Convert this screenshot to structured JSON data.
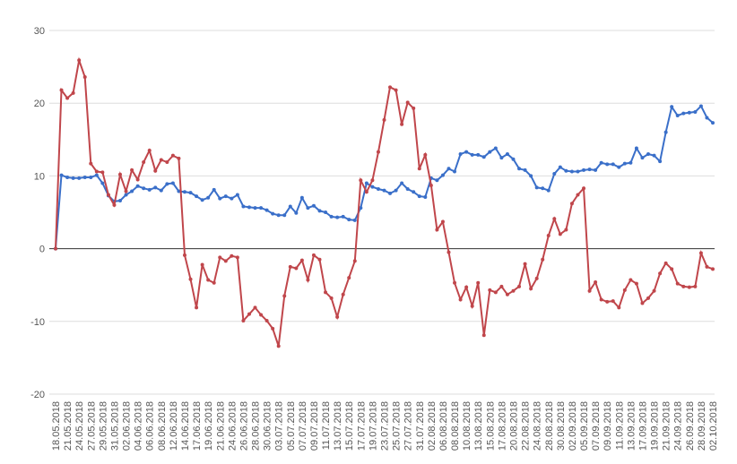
{
  "chart_data": {
    "type": "line",
    "categories": [
      "18.05.2018",
      null,
      "21.05.2018",
      null,
      "24.05.2018",
      null,
      "27.05.2018",
      null,
      "29.05.2018",
      null,
      "31.05.2018",
      null,
      "02.06.2018",
      null,
      "04.06.2018",
      null,
      "06.06.2018",
      null,
      "08.06.2018",
      null,
      "12.06.2018",
      null,
      "14.06.2018",
      null,
      "17.06.2018",
      null,
      "19.06.2018",
      null,
      "21.06.2018",
      null,
      "24.06.2018",
      null,
      "26.06.2018",
      null,
      "28.06.2018",
      null,
      "30.06.2018",
      null,
      "03.07.2018",
      null,
      "05.07.2018",
      null,
      "07.07.2018",
      null,
      "09.07.2018",
      null,
      "11.07.2018",
      null,
      "13.07.2018",
      null,
      "15.07.2018",
      null,
      "17.07.2018",
      null,
      "19.07.2018",
      null,
      "23.07.2018",
      null,
      "25.07.2018",
      null,
      "27.07.2018",
      null,
      "31.07.2018",
      null,
      "02.08.2018",
      null,
      "06.08.2018",
      null,
      "08.08.2018",
      null,
      "10.08.2018",
      null,
      "13.08.2018",
      null,
      "15.08.2018",
      null,
      "17.08.2018",
      null,
      "20.08.2018",
      null,
      "22.08.2018",
      null,
      "24.08.2018",
      null,
      "28.08.2018",
      null,
      "30.08.2018",
      null,
      "02.09.2018",
      null,
      "05.09.2018",
      null,
      "07.09.2018",
      null,
      "09.09.2018",
      null,
      "11.09.2018",
      null,
      "13.09.2018",
      null,
      "17.09.2018",
      null,
      "19.09.2018",
      null,
      "21.09.2018",
      null,
      "24.09.2018",
      null,
      "26.09.2018",
      null,
      "28.09.2018",
      null,
      "02.10.2018"
    ],
    "series": [
      {
        "color": "#3a6fc9",
        "values": [
          0,
          10.1,
          9.8,
          9.7,
          9.7,
          9.8,
          9.8,
          10.1,
          9.0,
          7.3,
          6.5,
          6.6,
          7.4,
          7.9,
          8.6,
          8.3,
          8.1,
          8.4,
          8.0,
          8.9,
          9.0,
          7.9,
          7.8,
          7.7,
          7.2,
          6.7,
          7.0,
          8.1,
          6.9,
          7.2,
          6.9,
          7.4,
          5.8,
          5.7,
          5.6,
          5.6,
          5.3,
          4.8,
          4.6,
          4.6,
          5.8,
          4.9,
          7.0,
          5.6,
          5.9,
          5.2,
          5.0,
          4.4,
          4.3,
          4.4,
          4.0,
          3.9,
          5.6,
          9.0,
          8.5,
          8.2,
          8.0,
          7.6,
          8.0,
          9.0,
          8.2,
          7.8,
          7.2,
          7.1,
          9.7,
          9.4,
          10.1,
          11.0,
          10.6,
          13.0,
          13.3,
          12.9,
          12.9,
          12.6,
          13.3,
          13.8,
          12.5,
          13.0,
          12.3,
          11.0,
          10.8,
          10.0,
          8.4,
          8.3,
          8.0,
          10.3,
          11.2,
          10.7,
          10.6,
          10.6,
          10.8,
          10.9,
          10.8,
          11.8,
          11.6,
          11.6,
          11.2,
          11.7,
          11.8,
          13.8,
          12.5,
          13.0,
          12.8,
          12.0,
          16.0,
          19.5,
          18.3,
          18.6,
          18.7,
          18.8,
          19.6,
          18.0,
          17.3
        ]
      },
      {
        "color": "#c0464b",
        "values": [
          0,
          21.8,
          20.7,
          21.4,
          25.9,
          23.6,
          11.7,
          10.6,
          10.5,
          7.4,
          6.0,
          10.2,
          7.9,
          10.8,
          9.5,
          11.9,
          13.5,
          10.7,
          12.2,
          11.9,
          12.8,
          12.4,
          -0.9,
          -4.2,
          -8.1,
          -2.2,
          -4.3,
          -4.7,
          -1.2,
          -1.7,
          -1.0,
          -1.2,
          -9.9,
          -9.0,
          -8.1,
          -9.1,
          -9.9,
          -11.0,
          -13.4,
          -6.5,
          -2.5,
          -2.7,
          -1.6,
          -4.3,
          -0.9,
          -1.5,
          -6.0,
          -6.8,
          -9.4,
          -6.3,
          -4.0,
          -1.7,
          9.4,
          7.8,
          9.4,
          13.3,
          17.7,
          22.2,
          21.8,
          17.1,
          20.1,
          19.3,
          11.0,
          12.9,
          8.7,
          2.6,
          3.7,
          -0.5,
          -4.7,
          -7.0,
          -5.3,
          -7.9,
          -4.7,
          -11.9,
          -5.7,
          -6.0,
          -5.2,
          -6.3,
          -5.8,
          -5.2,
          -2.1,
          -5.5,
          -4.1,
          -1.5,
          1.8,
          4.1,
          2.0,
          2.6,
          6.2,
          7.4,
          8.3,
          -5.8,
          -4.6,
          -7.0,
          -7.3,
          -7.2,
          -8.1,
          -5.7,
          -4.3,
          -4.8,
          -7.5,
          -6.8,
          -5.8,
          -3.4,
          -2.0,
          -2.8,
          -4.8,
          -5.2,
          -5.3,
          -5.2,
          -0.6,
          -2.5,
          -2.8
        ]
      }
    ],
    "ylim": [
      -20,
      30
    ],
    "yticks": [
      -20,
      -10,
      0,
      10,
      20,
      30
    ],
    "grid": true
  }
}
